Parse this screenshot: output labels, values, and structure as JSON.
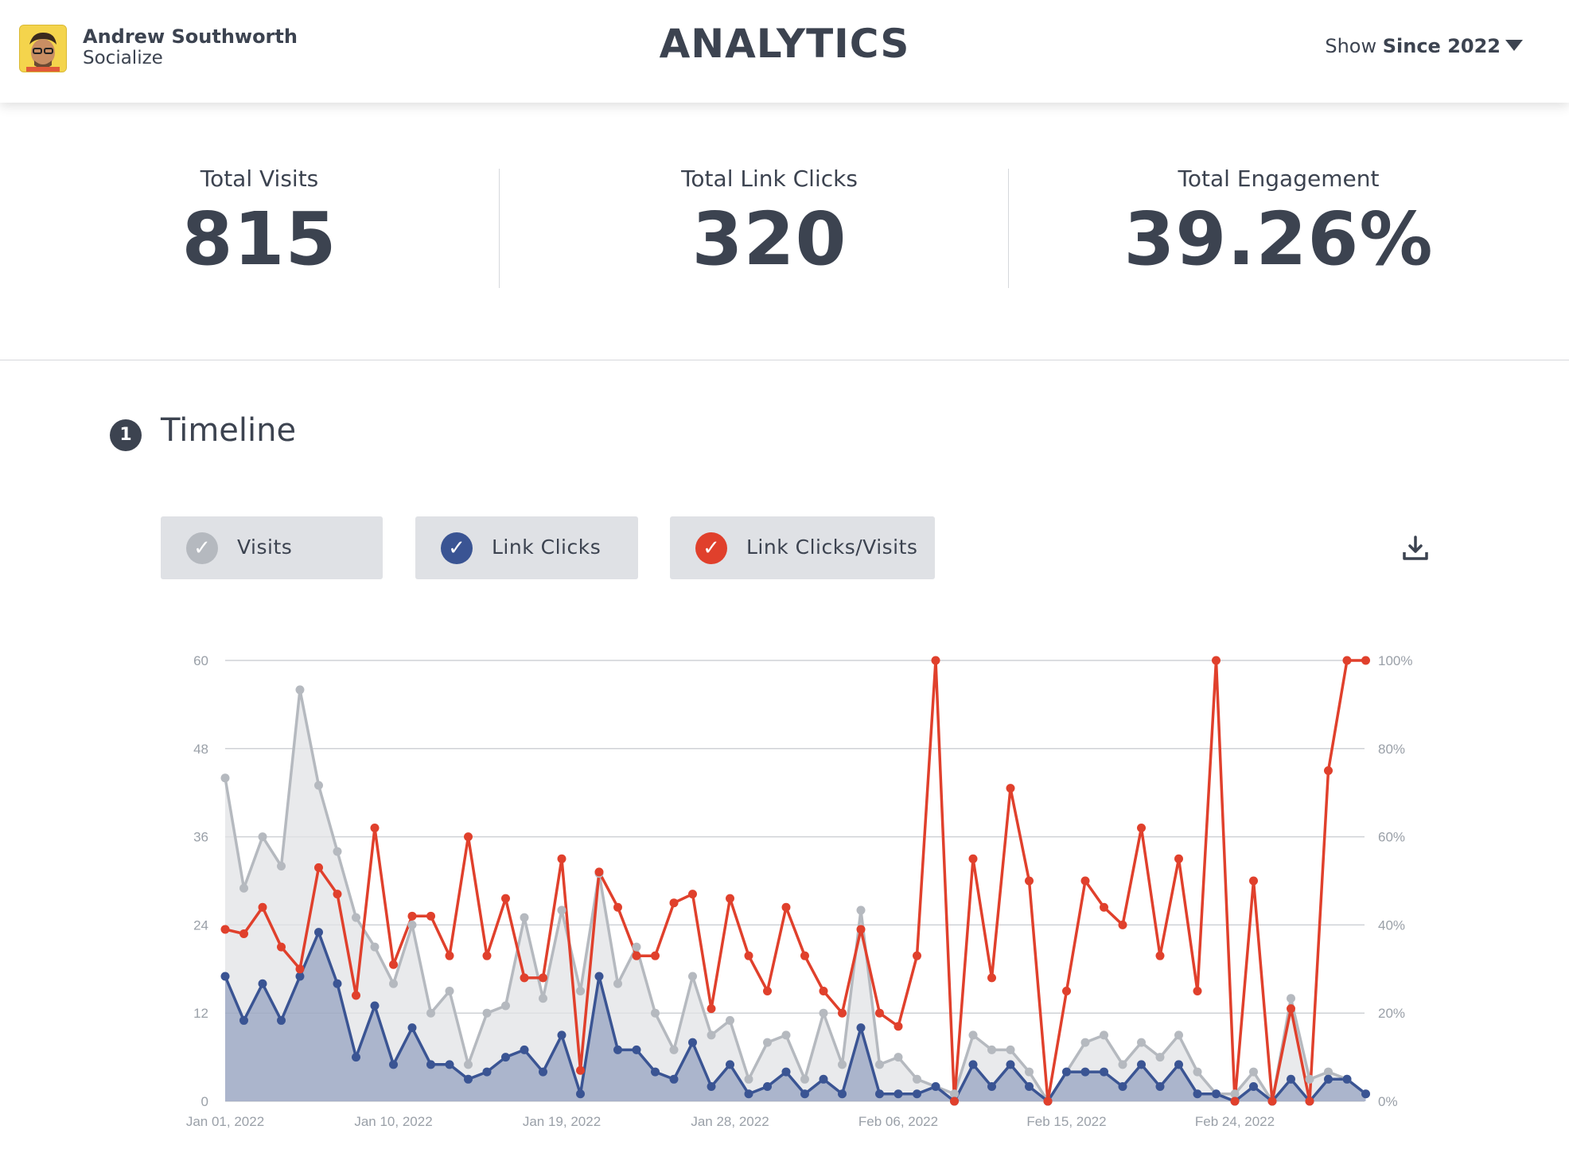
{
  "header": {
    "user_name": "Andrew Southworth",
    "user_subtitle": "Socialize",
    "title": "ANALYTICS",
    "filter_prefix": "Show",
    "filter_value": "Since 2022"
  },
  "stats": [
    {
      "label": "Total Visits",
      "value": "815"
    },
    {
      "label": "Total Link Clicks",
      "value": "320"
    },
    {
      "label": "Total Engagement",
      "value": "39.26%"
    }
  ],
  "timeline": {
    "number": "1",
    "title": "Timeline",
    "legend": [
      {
        "label": "Visits",
        "color": "#b5b9bf"
      },
      {
        "label": "Link Clicks",
        "color": "#3a5493"
      },
      {
        "label": "Link Clicks/Visits",
        "color": "#e0402c"
      }
    ]
  },
  "chart_data": {
    "type": "line",
    "x_tick_labels": [
      "Jan 01, 2022",
      "Jan 10, 2022",
      "Jan 19, 2022",
      "Jan 28, 2022",
      "Feb 06, 2022",
      "Feb 15, 2022",
      "Feb 24, 2022"
    ],
    "y_left_ticks": [
      "0",
      "12",
      "24",
      "36",
      "48",
      "60"
    ],
    "y_right_ticks": [
      "0%",
      "20%",
      "40%",
      "60%",
      "80%",
      "100%"
    ],
    "ylim_left": [
      0,
      60
    ],
    "ylim_right": [
      0,
      100
    ],
    "grid": true,
    "series": [
      {
        "name": "Visits",
        "axis": "left",
        "color": "#b5b9bf",
        "area": true,
        "values": [
          44,
          29,
          36,
          32,
          56,
          43,
          34,
          25,
          21,
          16,
          24,
          12,
          15,
          5,
          12,
          13,
          25,
          14,
          26,
          15,
          31,
          16,
          21,
          12,
          7,
          17,
          9,
          11,
          3,
          8,
          9,
          3,
          12,
          5,
          26,
          5,
          6,
          3,
          2,
          1,
          9,
          7,
          7,
          4,
          0,
          4,
          8,
          9,
          5,
          8,
          6,
          9,
          4,
          1,
          1,
          4,
          0,
          14,
          3,
          4,
          3,
          1
        ],
        "start_date": "2022-01-01"
      },
      {
        "name": "Link Clicks",
        "axis": "left",
        "color": "#3a5493",
        "area": true,
        "values": [
          17,
          11,
          16,
          11,
          17,
          23,
          16,
          6,
          13,
          5,
          10,
          5,
          5,
          3,
          4,
          6,
          7,
          4,
          9,
          1,
          17,
          7,
          7,
          4,
          3,
          8,
          2,
          5,
          1,
          2,
          4,
          1,
          3,
          1,
          10,
          1,
          1,
          1,
          2,
          0,
          5,
          2,
          5,
          2,
          0,
          4,
          4,
          4,
          2,
          5,
          2,
          5,
          1,
          1,
          0,
          2,
          0,
          3,
          0,
          3,
          3,
          1
        ]
      },
      {
        "name": "Link Clicks/Visits",
        "axis": "right",
        "color": "#e0402c",
        "area": false,
        "values": [
          39,
          38,
          44,
          35,
          30,
          53,
          47,
          24,
          62,
          31,
          42,
          42,
          33,
          60,
          33,
          46,
          28,
          28,
          55,
          7,
          52,
          44,
          33,
          33,
          45,
          47,
          21,
          46,
          33,
          25,
          44,
          33,
          25,
          20,
          39,
          20,
          17,
          33,
          100,
          0,
          55,
          28,
          71,
          50,
          0,
          25,
          50,
          44,
          40,
          62,
          33,
          55,
          25,
          100,
          0,
          50,
          0,
          21,
          0,
          75,
          100,
          100
        ]
      }
    ]
  }
}
